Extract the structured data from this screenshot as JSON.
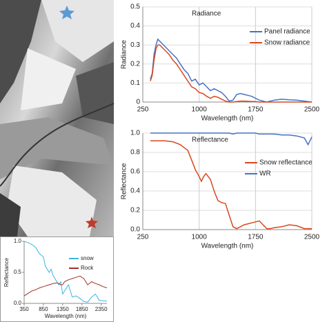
{
  "chart_data": [
    {
      "type": "line",
      "title": "Radiance",
      "y_label": "Radiance",
      "x_label": "Wavelength  (nm)",
      "xlim": [
        250,
        2500
      ],
      "xticks": [
        250,
        1000,
        1750,
        2500
      ],
      "ylim": [
        0,
        0.5
      ],
      "yticks": [
        0,
        0.1,
        0.2,
        0.3,
        0.4,
        0.5
      ],
      "grid": true,
      "legend": "upper right",
      "x": [
        350,
        375,
        400,
        425,
        450,
        475,
        500,
        550,
        600,
        650,
        700,
        750,
        800,
        850,
        900,
        950,
        1000,
        1050,
        1100,
        1150,
        1200,
        1250,
        1300,
        1350,
        1400,
        1450,
        1500,
        1550,
        1600,
        1650,
        1700,
        1750,
        1800,
        1850,
        1900,
        1950,
        2000,
        2100,
        2200,
        2300,
        2400,
        2500
      ],
      "series": [
        {
          "name": "Panel radiance",
          "color": "#4472c4",
          "values": [
            0.12,
            0.15,
            0.25,
            0.3,
            0.33,
            0.32,
            0.31,
            0.29,
            0.27,
            0.25,
            0.23,
            0.2,
            0.17,
            0.15,
            0.11,
            0.12,
            0.09,
            0.1,
            0.08,
            0.06,
            0.07,
            0.06,
            0.05,
            0.03,
            0.005,
            0.01,
            0.04,
            0.045,
            0.04,
            0.035,
            0.03,
            0.02,
            0.01,
            0.005,
            0,
            0.005,
            0.01,
            0.015,
            0.012,
            0.01,
            0.005,
            0
          ]
        },
        {
          "name": "Snow radiance",
          "color": "#d9461b",
          "values": [
            0.11,
            0.14,
            0.22,
            0.28,
            0.3,
            0.3,
            0.29,
            0.27,
            0.25,
            0.22,
            0.2,
            0.17,
            0.14,
            0.11,
            0.08,
            0.07,
            0.05,
            0.045,
            0.03,
            0.02,
            0.03,
            0.025,
            0.015,
            0.005,
            0,
            0,
            0.003,
            0.005,
            0.005,
            0.004,
            0.003,
            0.002,
            0,
            0,
            0,
            0,
            0,
            0,
            0,
            0,
            0,
            0
          ]
        }
      ]
    },
    {
      "type": "line",
      "title": "Reflectance",
      "y_label": "Reflectance",
      "x_label": "Wavelength  (nm)",
      "xlim": [
        250,
        2500
      ],
      "xticks": [
        250,
        1000,
        1750,
        2500
      ],
      "ylim": [
        0,
        1
      ],
      "yticks": [
        {
          "value": 0,
          "label": "0.0"
        },
        0.2,
        0.4,
        0.6,
        0.8,
        {
          "value": 1,
          "label": "1.0"
        }
      ],
      "grid": true,
      "legend": "center right",
      "x": [
        350,
        450,
        550,
        650,
        750,
        850,
        900,
        950,
        1000,
        1030,
        1060,
        1090,
        1150,
        1200,
        1250,
        1300,
        1350,
        1400,
        1450,
        1500,
        1550,
        1600,
        1650,
        1700,
        1750,
        1800,
        1850,
        1900,
        1950,
        2000,
        2100,
        2200,
        2300,
        2400,
        2450,
        2500
      ],
      "series": [
        {
          "name": "Snow reflectance",
          "color": "#d9461b",
          "values": [
            0.92,
            0.92,
            0.92,
            0.91,
            0.88,
            0.82,
            0.72,
            0.62,
            0.55,
            0.5,
            0.55,
            0.58,
            0.52,
            0.4,
            0.3,
            0.28,
            0.27,
            0.15,
            0.03,
            0.01,
            0.03,
            0.05,
            0.06,
            0.07,
            0.08,
            0.09,
            0.05,
            0.01,
            0.01,
            0.02,
            0.03,
            0.05,
            0.04,
            0.01,
            0.01,
            0.01
          ]
        },
        {
          "name": "WR",
          "color": "#4472c4",
          "values": [
            1,
            1,
            1,
            1,
            1,
            1,
            1,
            1,
            1,
            1,
            1,
            1,
            1,
            1,
            1,
            1,
            1,
            1,
            0.99,
            1,
            1,
            1,
            1,
            1,
            1,
            0.99,
            0.99,
            0.99,
            0.99,
            0.99,
            0.98,
            0.98,
            0.97,
            0.95,
            0.88,
            0.96
          ]
        }
      ]
    },
    {
      "type": "line",
      "y_label": "Reflectance",
      "x_label": "Wavelength (nm)",
      "xlim": [
        350,
        2500
      ],
      "xticks": [
        350,
        850,
        1350,
        1850,
        2350
      ],
      "ylim": [
        0,
        1
      ],
      "yticks": [
        {
          "value": 0,
          "label": "0.0"
        },
        0.5,
        {
          "value": 1,
          "label": "1.0"
        }
      ],
      "grid": false,
      "legend": "upper right",
      "x": [
        350,
        450,
        550,
        650,
        750,
        850,
        900,
        950,
        1000,
        1050,
        1100,
        1200,
        1250,
        1300,
        1350,
        1400,
        1500,
        1600,
        1700,
        1800,
        1900,
        2000,
        2100,
        2200,
        2300,
        2400,
        2500
      ],
      "series": [
        {
          "name": "snow",
          "color": "#3bb4e0",
          "values": [
            1,
            0.98,
            0.95,
            0.9,
            0.8,
            0.75,
            0.6,
            0.55,
            0.5,
            0.55,
            0.45,
            0.35,
            0.3,
            0.35,
            0.15,
            0.2,
            0.3,
            0.1,
            0.12,
            0.08,
            0.03,
            0.02,
            0.1,
            0.15,
            0.05,
            0.04,
            0.04
          ]
        },
        {
          "name": "Rock",
          "color": "#a0302a",
          "values": [
            0.12,
            0.16,
            0.2,
            0.22,
            0.25,
            0.27,
            0.28,
            0.29,
            0.3,
            0.31,
            0.32,
            0.33,
            0.32,
            0.3,
            0.3,
            0.35,
            0.38,
            0.4,
            0.42,
            0.44,
            0.4,
            0.3,
            0.35,
            0.32,
            0.3,
            0.27,
            0.25
          ]
        }
      ]
    }
  ]
}
